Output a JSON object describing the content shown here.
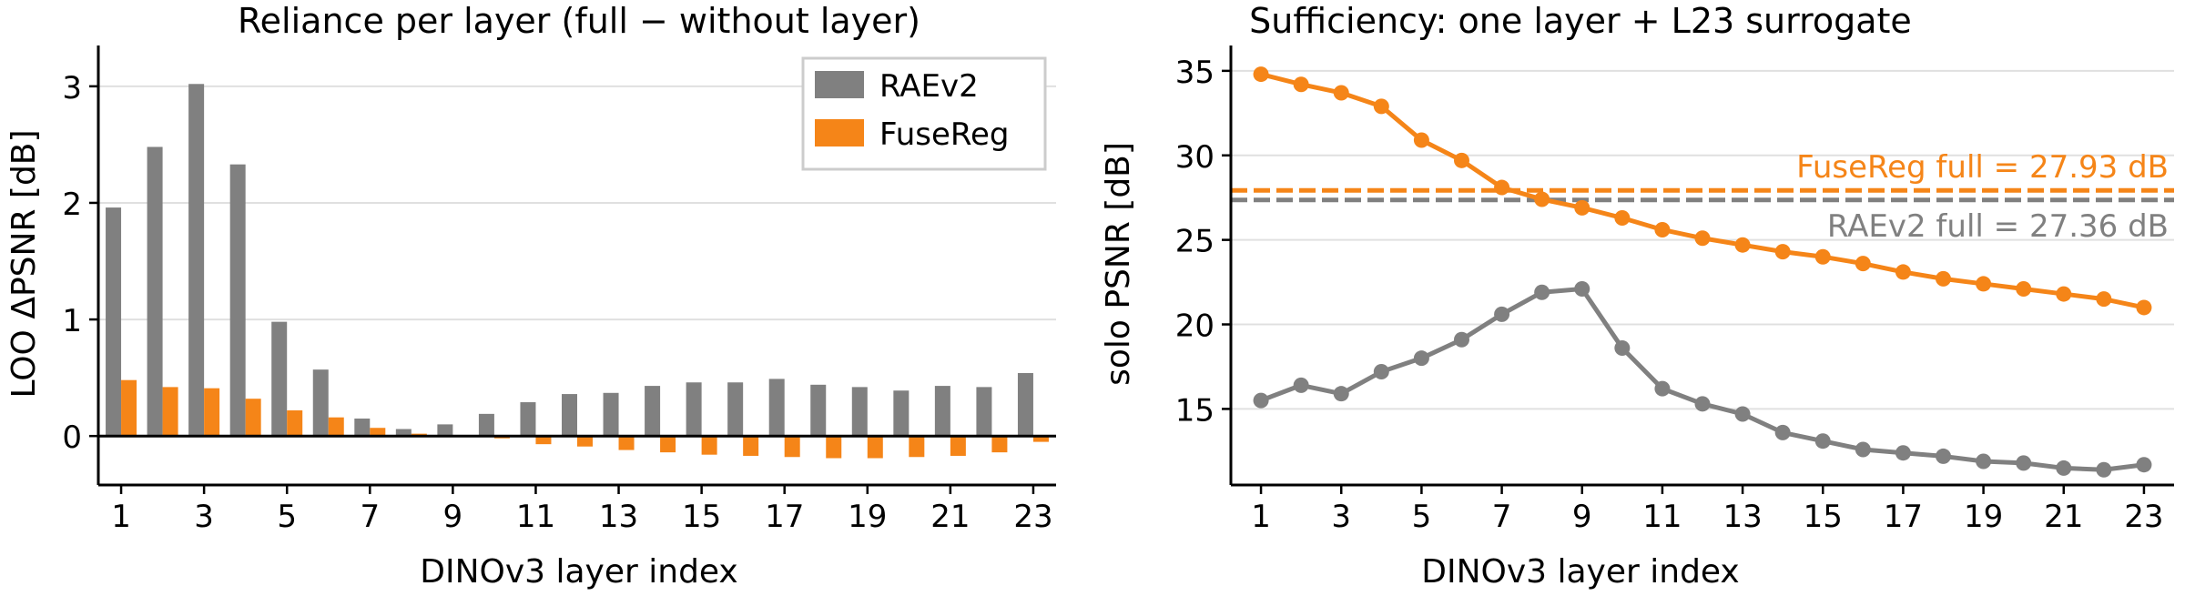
{
  "colors": {
    "raev2": "#808080",
    "fusereg": "#f58518",
    "grid": "#e0e0e0",
    "axis": "#000000"
  },
  "chart_data": [
    {
      "type": "bar",
      "title": "Reliance per layer  (full − without layer)",
      "xlabel": "DINOv3 layer index",
      "ylabel": "LOO ΔPSNR [dB]",
      "x": [
        1,
        2,
        3,
        4,
        5,
        6,
        7,
        8,
        9,
        10,
        11,
        12,
        13,
        14,
        15,
        16,
        17,
        18,
        19,
        20,
        21,
        22,
        23
      ],
      "xticks": [
        1,
        3,
        5,
        7,
        9,
        11,
        13,
        15,
        17,
        19,
        21,
        23
      ],
      "yticks": [
        0,
        1,
        2,
        3
      ],
      "ylim": [
        -0.42,
        3.35
      ],
      "legend": "top-right",
      "grid": "horizontal",
      "series": [
        {
          "name": "RAEv2",
          "color": "#808080",
          "values": [
            1.96,
            2.48,
            3.02,
            2.33,
            0.98,
            0.57,
            0.15,
            0.06,
            0.1,
            0.19,
            0.29,
            0.36,
            0.37,
            0.43,
            0.46,
            0.46,
            0.49,
            0.44,
            0.42,
            0.39,
            0.43,
            0.42,
            0.54
          ]
        },
        {
          "name": "FuseReg",
          "color": "#f58518",
          "values": [
            0.48,
            0.42,
            0.41,
            0.32,
            0.22,
            0.16,
            0.07,
            0.02,
            0.0,
            -0.02,
            -0.07,
            -0.09,
            -0.12,
            -0.14,
            -0.16,
            -0.17,
            -0.18,
            -0.19,
            -0.19,
            -0.18,
            -0.17,
            -0.14,
            -0.05
          ]
        }
      ]
    },
    {
      "type": "line",
      "title": "Sufficiency: one layer + L23 surrogate",
      "xlabel": "DINOv3 layer index",
      "ylabel": "solo PSNR [dB]",
      "x": [
        1,
        2,
        3,
        4,
        5,
        6,
        7,
        8,
        9,
        10,
        11,
        12,
        13,
        14,
        15,
        16,
        17,
        18,
        19,
        20,
        21,
        22,
        23
      ],
      "xticks": [
        1,
        3,
        5,
        7,
        9,
        11,
        13,
        15,
        17,
        19,
        21,
        23
      ],
      "yticks": [
        15,
        20,
        25,
        30,
        35
      ],
      "ylim": [
        10.5,
        36.5
      ],
      "grid": "horizontal",
      "series": [
        {
          "name": "FuseReg",
          "color": "#f58518",
          "values": [
            34.8,
            34.2,
            33.7,
            32.9,
            30.9,
            29.7,
            28.1,
            27.4,
            26.9,
            26.3,
            25.6,
            25.1,
            24.7,
            24.3,
            24.0,
            23.6,
            23.1,
            22.7,
            22.4,
            22.1,
            21.8,
            21.5,
            21.0
          ]
        },
        {
          "name": "RAEv2",
          "color": "#808080",
          "values": [
            15.5,
            16.4,
            15.9,
            17.2,
            18.0,
            19.1,
            20.6,
            21.9,
            22.1,
            18.6,
            16.2,
            15.3,
            14.7,
            13.6,
            13.1,
            12.6,
            12.4,
            12.2,
            11.9,
            11.8,
            11.5,
            11.4,
            11.7
          ]
        }
      ],
      "reference_lines": [
        {
          "label": "FuseReg full = 27.93 dB",
          "value": 27.93,
          "color": "#f58518",
          "style": "dashed",
          "label_position": "above-right"
        },
        {
          "label": "RAEv2 full = 27.36 dB",
          "value": 27.36,
          "color": "#808080",
          "style": "dashed",
          "label_position": "below-right"
        }
      ]
    }
  ]
}
